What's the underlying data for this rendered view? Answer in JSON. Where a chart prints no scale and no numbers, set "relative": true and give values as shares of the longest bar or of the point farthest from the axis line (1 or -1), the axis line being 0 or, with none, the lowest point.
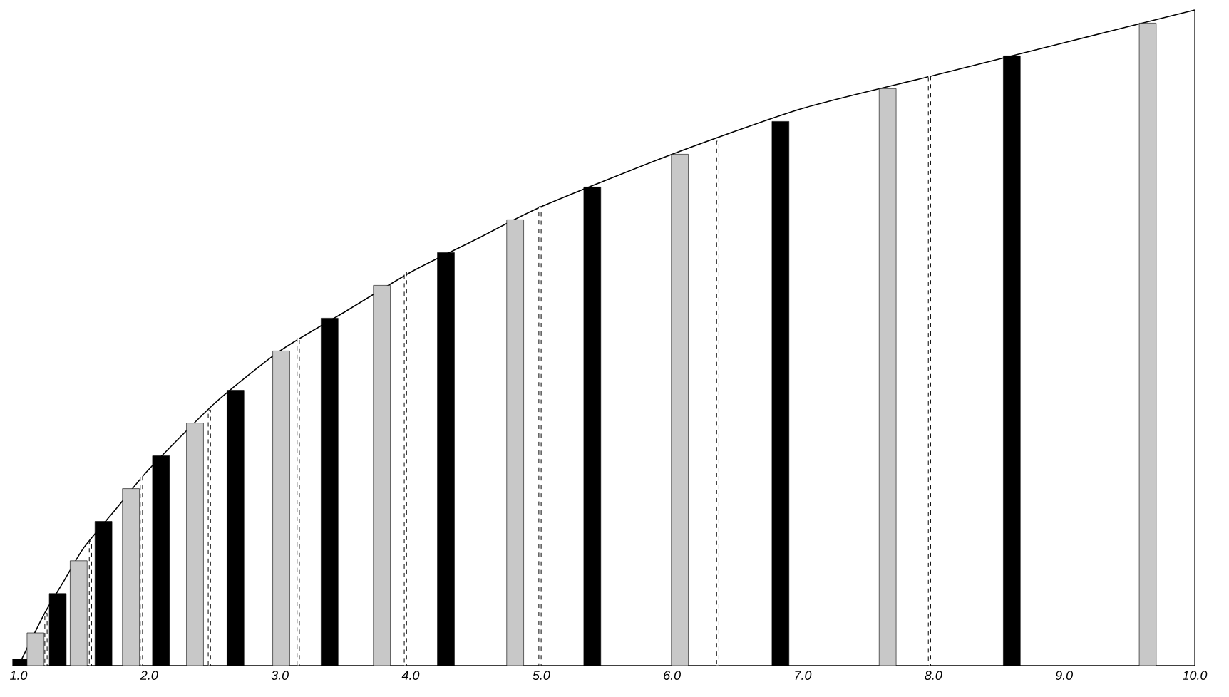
{
  "chart_data": {
    "type": "bar",
    "relative": true,
    "xlim": [
      1,
      10
    ],
    "xticks": [
      {
        "value": 1,
        "label": "1.0"
      },
      {
        "value": 2,
        "label": "2.0"
      },
      {
        "value": 3,
        "label": "3.0"
      },
      {
        "value": 4,
        "label": "4.0"
      },
      {
        "value": 5,
        "label": "5.0"
      },
      {
        "value": 6,
        "label": "6.0"
      },
      {
        "value": 7,
        "label": "7.0"
      },
      {
        "value": 8,
        "label": "8.0"
      },
      {
        "value": 9,
        "label": "9.0"
      },
      {
        "value": 10,
        "label": "10.0"
      }
    ],
    "ref_lines": [
      {
        "axis": "x",
        "value": 10,
        "color": "#000000"
      }
    ],
    "series": [
      {
        "type": "line",
        "color": "#000000",
        "marker": "none",
        "x": [
          1,
          1.2,
          1.35,
          1.5,
          1.75,
          2,
          2.5,
          3,
          3.5,
          4,
          4.5,
          5,
          6,
          7,
          8,
          9,
          10
        ],
        "values": [
          0,
          0.08,
          0.13,
          0.18,
          0.24,
          0.3,
          0.4,
          0.48,
          0.54,
          0.6,
          0.65,
          0.7,
          0.78,
          0.85,
          0.9,
          0.95,
          1
        ]
      },
      {
        "color": "#000000",
        "x": [
          1.02,
          1.3,
          1.65,
          2.09,
          2.66,
          3.38,
          4.27,
          5.39,
          6.83,
          8.6
        ],
        "values": [
          0.01,
          0.11,
          0.22,
          0.32,
          0.42,
          0.53,
          0.63,
          0.73,
          0.83,
          0.93
        ]
      },
      {
        "color": "#c8c8c8",
        "x": [
          1.13,
          1.46,
          1.86,
          2.35,
          3.01,
          3.78,
          4.8,
          6.06,
          7.65,
          9.64
        ],
        "values": [
          0.05,
          0.16,
          0.27,
          0.37,
          0.48,
          0.58,
          0.68,
          0.78,
          0.88,
          0.98
        ]
      },
      {
        "type": "bar",
        "color": "#000000",
        "line_style": "dashed",
        "x": [
          1.21,
          1.55,
          1.94,
          2.46,
          3.14,
          3.96,
          4.99,
          6.35,
          7.97
        ],
        "values": [
          0.08,
          0.19,
          0.29,
          0.39,
          0.5,
          0.6,
          0.7,
          0.8,
          0.9
        ]
      }
    ]
  }
}
